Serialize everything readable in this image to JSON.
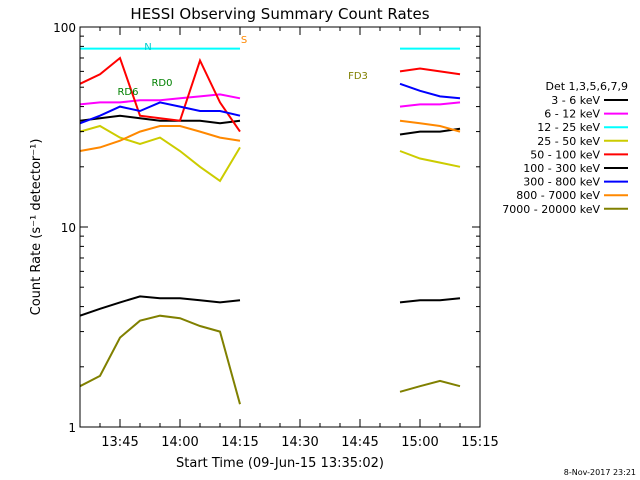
{
  "chart_data": {
    "type": "line",
    "title": "HESSI Observing Summary Count Rates",
    "xlabel": "Start Time (09-Jun-15 13:35:02)",
    "ylabel": "Count Rate (s⁻¹ detector⁻¹)",
    "y_scale": "log",
    "ylim": [
      1,
      100
    ],
    "xlim": [
      "13:35",
      "15:15"
    ],
    "x_ticks": [
      "13:45",
      "14:00",
      "14:15",
      "14:30",
      "14:45",
      "15:00",
      "15:15"
    ],
    "y_ticks": [
      "1",
      "10",
      "100"
    ],
    "legend_title": "Det 1,3,5,6,7,9",
    "legend_position": "right",
    "footer_date": "8-Nov-2017 23:21",
    "series": [
      {
        "name": "3 - 6 keV",
        "color": "#000000",
        "x": [
          "13:35",
          "13:40",
          "13:45",
          "13:50",
          "13:55",
          "14:00",
          "14:05",
          "14:10",
          "14:15",
          "14:55",
          "15:00",
          "15:05",
          "15:10"
        ],
        "y": [
          34,
          35,
          36,
          35,
          34,
          34,
          34,
          33,
          34,
          29,
          30,
          30,
          31
        ]
      },
      {
        "name": "6 - 12 keV",
        "color": "#ff00ff",
        "x": [
          "13:35",
          "13:40",
          "13:45",
          "13:50",
          "13:55",
          "14:00",
          "14:05",
          "14:10",
          "14:15",
          "14:55",
          "15:00",
          "15:05",
          "15:10"
        ],
        "y": [
          41,
          42,
          42,
          43,
          43,
          44,
          45,
          46,
          44,
          40,
          41,
          41,
          42
        ]
      },
      {
        "name": "12 - 25 keV",
        "color": "#00ffff",
        "x": [
          "13:35",
          "13:40",
          "13:45",
          "13:50",
          "13:55",
          "14:00",
          "14:05",
          "14:10",
          "14:15",
          "14:55",
          "15:00",
          "15:05",
          "15:10"
        ],
        "y": [
          78,
          78,
          78,
          78,
          78,
          78,
          78,
          78,
          78,
          78,
          78,
          78,
          78
        ]
      },
      {
        "name": "25 - 50 keV",
        "color": "#cccc00",
        "x": [
          "13:35",
          "13:40",
          "13:45",
          "13:50",
          "13:55",
          "14:00",
          "14:05",
          "14:10",
          "14:15",
          "14:55",
          "15:00",
          "15:05",
          "15:10"
        ],
        "y": [
          30,
          32,
          28,
          26,
          28,
          24,
          20,
          17,
          25,
          24,
          22,
          21,
          20
        ]
      },
      {
        "name": "50 - 100 keV",
        "color": "#ff0000",
        "x": [
          "13:35",
          "13:40",
          "13:45",
          "13:50",
          "13:55",
          "14:00",
          "14:05",
          "14:10",
          "14:15",
          "14:55",
          "15:00",
          "15:05",
          "15:10"
        ],
        "y": [
          52,
          58,
          70,
          36,
          35,
          34,
          68,
          42,
          30,
          60,
          62,
          60,
          58
        ]
      },
      {
        "name": "100 - 300 keV",
        "color": "#000000",
        "x": [
          "13:35",
          "13:40",
          "13:45",
          "13:50",
          "13:55",
          "14:00",
          "14:05",
          "14:10",
          "14:15",
          "14:55",
          "15:00",
          "15:05",
          "15:10"
        ],
        "y": [
          3.6,
          3.9,
          4.2,
          4.5,
          4.4,
          4.4,
          4.3,
          4.2,
          4.3,
          4.2,
          4.3,
          4.3,
          4.4
        ]
      },
      {
        "name": "300 - 800 keV",
        "color": "#0000ff",
        "x": [
          "13:35",
          "13:40",
          "13:45",
          "13:50",
          "13:55",
          "14:00",
          "14:05",
          "14:10",
          "14:15",
          "14:55",
          "15:00",
          "15:05",
          "15:10"
        ],
        "y": [
          33,
          36,
          40,
          38,
          42,
          40,
          38,
          38,
          36,
          52,
          48,
          45,
          44
        ]
      },
      {
        "name": "800 - 7000 keV",
        "color": "#ff8800",
        "x": [
          "13:35",
          "13:40",
          "13:45",
          "13:50",
          "13:55",
          "14:00",
          "14:05",
          "14:10",
          "14:15",
          "14:55",
          "15:00",
          "15:05",
          "15:10"
        ],
        "y": [
          24,
          25,
          27,
          30,
          32,
          32,
          30,
          28,
          27,
          34,
          33,
          32,
          30
        ]
      },
      {
        "name": "7000 - 20000 keV",
        "color": "#808000",
        "x": [
          "13:35",
          "13:40",
          "13:45",
          "13:50",
          "13:55",
          "14:00",
          "14:05",
          "14:10",
          "14:15",
          "14:55",
          "15:00",
          "15:05",
          "15:10"
        ],
        "y": [
          1.6,
          1.8,
          2.8,
          3.4,
          3.6,
          3.5,
          3.2,
          3.0,
          1.3,
          1.5,
          1.6,
          1.7,
          1.6
        ]
      }
    ],
    "annotations": [
      "N",
      "S",
      "RD0",
      "RD6",
      "FD3"
    ]
  }
}
